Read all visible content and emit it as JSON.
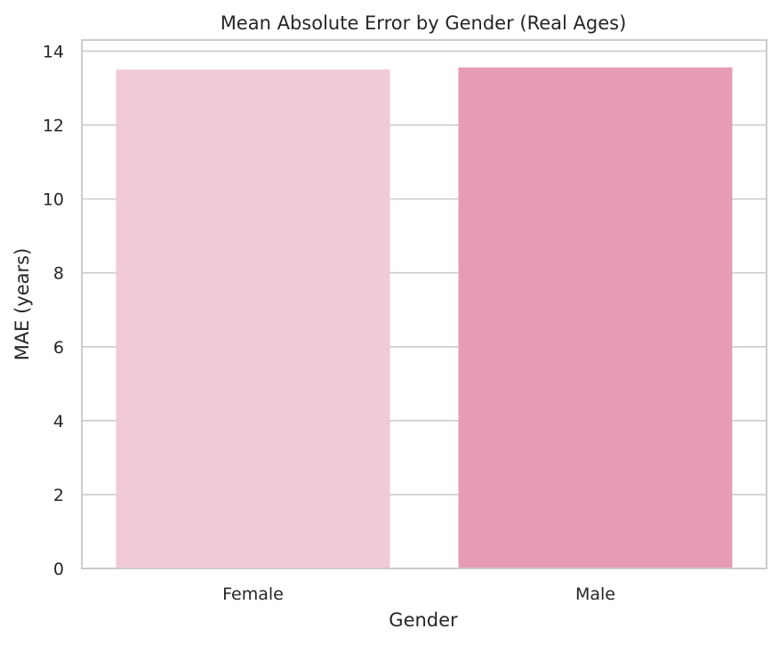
{
  "chart_data": {
    "type": "bar",
    "title": "Mean Absolute Error by Gender (Real Ages)",
    "xlabel": "Gender",
    "ylabel": "MAE (years)",
    "categories": [
      "Female",
      "Male"
    ],
    "values": [
      13.5,
      13.56
    ],
    "colors": [
      "#f2c9d6",
      "#e69cb5"
    ],
    "ylim": [
      0,
      14.3
    ],
    "yticks": [
      0,
      2,
      4,
      6,
      8,
      10,
      12,
      14
    ],
    "grid": "horizontal",
    "colors_theme": {
      "grid": "#cccccc",
      "frame": "#cccccc",
      "background": "#ffffff"
    }
  }
}
